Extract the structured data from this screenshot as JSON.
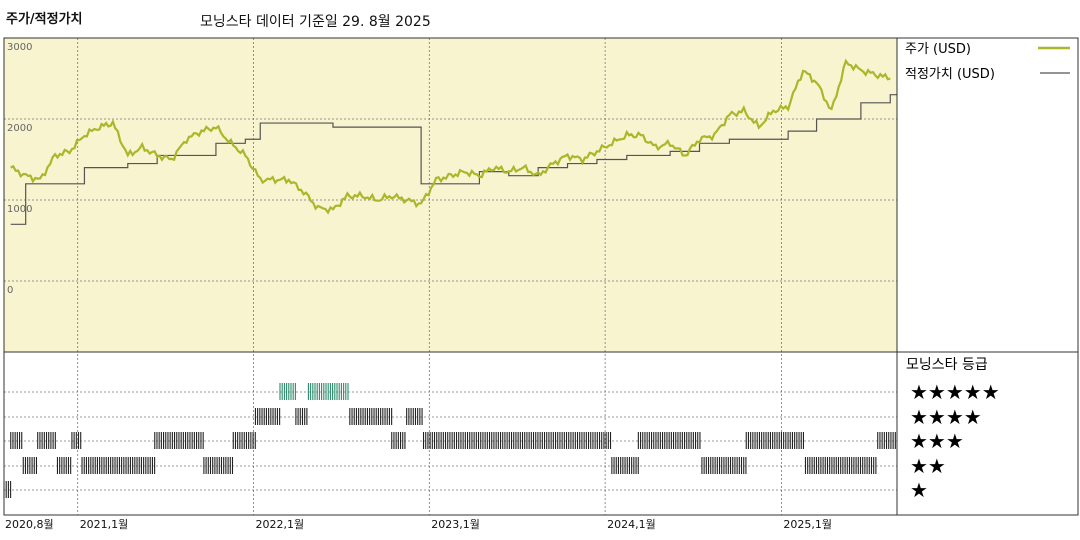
{
  "header": {
    "title": "주가/적정가치",
    "subtitle": "모닝스타 데이터 기준일 29. 8월 2025"
  },
  "legend": {
    "price_label": "주가 (USD)",
    "fair_value_label": "적정가치 (USD)",
    "rating_title": "모닝스타 등급",
    "rating_stars": [
      "★★★★★",
      "★★★★",
      "★★★",
      "★★",
      "★"
    ]
  },
  "colors": {
    "price": "#a8b82a",
    "fair_value": "#555555",
    "plot_bg": "#f7f4cf",
    "rating_5": "#2e8a6c",
    "rating_other": "#222222"
  },
  "chart_data": {
    "type": "line",
    "ylim": [
      -1000,
      3000
    ],
    "yticks": [
      0,
      1000,
      2000,
      3000
    ],
    "ytick_labels": [
      "0",
      "1000",
      "2000",
      "3000"
    ],
    "x_range": [
      "2020-08-01",
      "2025-08-29"
    ],
    "xtick_labels": [
      "2020,8월",
      "2021,1월",
      "2022,1월",
      "2023,1월",
      "2024,1월",
      "2025,1월"
    ],
    "xtick_dates": [
      "2020-08-01",
      "2021-01-01",
      "2022-01-01",
      "2023-01-01",
      "2024-01-01",
      "2025-01-01"
    ],
    "grid": true,
    "series": [
      {
        "name": "주가 (USD)",
        "x": [
          "2020-08",
          "2020-09",
          "2020-10",
          "2020-11",
          "2020-12",
          "2021-01",
          "2021-02",
          "2021-03",
          "2021-04",
          "2021-05",
          "2021-06",
          "2021-07",
          "2021-08",
          "2021-09",
          "2021-10",
          "2021-11",
          "2021-12",
          "2022-01",
          "2022-02",
          "2022-03",
          "2022-04",
          "2022-05",
          "2022-06",
          "2022-07",
          "2022-08",
          "2022-09",
          "2022-10",
          "2022-11",
          "2022-12",
          "2023-01",
          "2023-02",
          "2023-03",
          "2023-04",
          "2023-05",
          "2023-06",
          "2023-07",
          "2023-08",
          "2023-09",
          "2023-10",
          "2023-11",
          "2023-12",
          "2024-01",
          "2024-02",
          "2024-03",
          "2024-04",
          "2024-05",
          "2024-06",
          "2024-07",
          "2024-08",
          "2024-09",
          "2024-10",
          "2024-11",
          "2024-12",
          "2025-01",
          "2025-02",
          "2025-03",
          "2025-04",
          "2025-05",
          "2025-06",
          "2025-07",
          "2025-08"
        ],
        "y": [
          1400,
          1300,
          1250,
          1550,
          1600,
          1800,
          1900,
          1950,
          1550,
          1650,
          1550,
          1500,
          1750,
          1850,
          1900,
          1700,
          1550,
          1250,
          1250,
          1250,
          1100,
          900,
          880,
          1050,
          1050,
          1000,
          1050,
          1000,
          950,
          1250,
          1300,
          1350,
          1300,
          1400,
          1350,
          1400,
          1300,
          1450,
          1550,
          1500,
          1600,
          1700,
          1800,
          1800,
          1650,
          1700,
          1550,
          1750,
          1800,
          2050,
          2100,
          1900,
          2100,
          2150,
          2600,
          2450,
          2100,
          2700,
          2600,
          2550,
          2500
        ]
      },
      {
        "name": "적정가치 (USD)",
        "x": [
          "2020-08",
          "2020-09",
          "2020-11",
          "2021-01",
          "2021-04",
          "2021-06",
          "2021-09",
          "2021-10",
          "2021-12",
          "2022-01",
          "2022-06",
          "2022-12",
          "2023-04",
          "2023-06",
          "2023-08",
          "2023-10",
          "2023-12",
          "2024-02",
          "2024-05",
          "2024-07",
          "2024-09",
          "2024-11",
          "2025-01",
          "2025-03",
          "2025-06",
          "2025-08"
        ],
        "y": [
          700,
          1200,
          1200,
          1400,
          1450,
          1550,
          1550,
          1700,
          1750,
          1950,
          1900,
          1200,
          1350,
          1300,
          1400,
          1450,
          1500,
          1550,
          1600,
          1700,
          1750,
          1750,
          1850,
          2000,
          2200,
          2300
        ]
      }
    ]
  },
  "ratings": {
    "levels": [
      5,
      4,
      3,
      2,
      1
    ],
    "segments": [
      {
        "level": 1,
        "start": "2020-08-01",
        "end": "2020-08-15"
      },
      {
        "level": 3,
        "start": "2020-08-15",
        "end": "2020-09-10"
      },
      {
        "level": 2,
        "start": "2020-09-10",
        "end": "2020-10-10"
      },
      {
        "level": 3,
        "start": "2020-10-10",
        "end": "2020-11-20"
      },
      {
        "level": 2,
        "start": "2020-11-20",
        "end": "2020-12-20"
      },
      {
        "level": 3,
        "start": "2020-12-20",
        "end": "2021-01-10"
      },
      {
        "level": 2,
        "start": "2021-01-10",
        "end": "2021-06-10"
      },
      {
        "level": 3,
        "start": "2021-06-10",
        "end": "2021-09-20"
      },
      {
        "level": 2,
        "start": "2021-09-20",
        "end": "2021-11-20"
      },
      {
        "level": 3,
        "start": "2021-11-20",
        "end": "2022-01-05"
      },
      {
        "level": 4,
        "start": "2022-01-05",
        "end": "2022-02-25"
      },
      {
        "level": 5,
        "start": "2022-02-25",
        "end": "2022-03-30"
      },
      {
        "level": 4,
        "start": "2022-03-30",
        "end": "2022-04-25"
      },
      {
        "level": 5,
        "start": "2022-04-25",
        "end": "2022-07-20"
      },
      {
        "level": 4,
        "start": "2022-07-20",
        "end": "2022-10-15"
      },
      {
        "level": 3,
        "start": "2022-10-15",
        "end": "2022-11-15"
      },
      {
        "level": 4,
        "start": "2022-11-15",
        "end": "2022-12-20"
      },
      {
        "level": 3,
        "start": "2022-12-20",
        "end": "2024-01-15"
      },
      {
        "level": 2,
        "start": "2024-01-15",
        "end": "2024-03-10"
      },
      {
        "level": 3,
        "start": "2024-03-10",
        "end": "2024-07-20"
      },
      {
        "level": 2,
        "start": "2024-07-20",
        "end": "2024-10-20"
      },
      {
        "level": 3,
        "start": "2024-10-20",
        "end": "2025-02-20"
      },
      {
        "level": 2,
        "start": "2025-02-20",
        "end": "2025-07-20"
      },
      {
        "level": 3,
        "start": "2025-07-20",
        "end": "2025-08-29"
      }
    ]
  }
}
